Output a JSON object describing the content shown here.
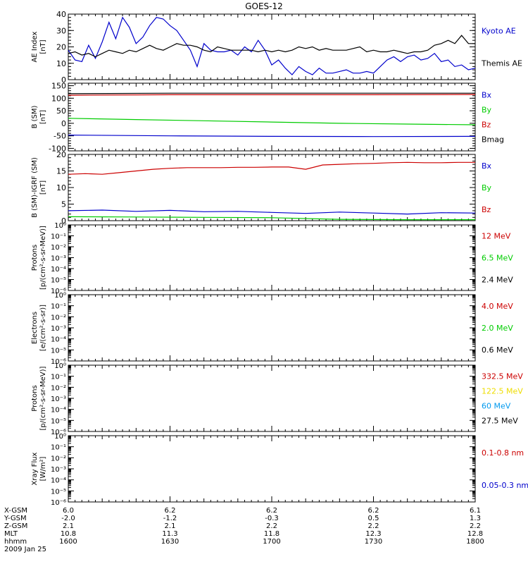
{
  "title": "GOES-12",
  "colors": {
    "blue": "#0000cc",
    "black": "#000000",
    "red": "#cc0000",
    "green": "#00cc00",
    "yellow": "#eedd00",
    "cyan": "#0099ee"
  },
  "chart_data": [
    {
      "id": "ae",
      "type": "line",
      "ylabel": [
        "AE Index",
        "[nT]"
      ],
      "ylim": [
        0,
        40
      ],
      "yticks": [
        0,
        10,
        20,
        30,
        40
      ],
      "legend": [
        {
          "name": "Kyoto AE",
          "color": "blue"
        },
        {
          "name": "Themis AE",
          "color": "black"
        }
      ],
      "series": [
        {
          "name": "Kyoto AE",
          "color": "blue",
          "x": [
            0,
            2,
            4,
            6,
            8,
            10,
            12,
            14,
            16,
            18,
            20,
            22,
            24,
            26,
            28,
            30,
            32,
            34,
            36,
            38,
            40,
            42,
            44,
            46,
            48,
            50,
            52,
            54,
            56,
            58,
            60,
            62,
            64,
            66,
            68,
            70,
            72,
            74,
            76,
            78,
            80,
            82,
            84,
            86,
            88,
            90,
            92,
            94,
            96,
            98,
            100,
            102,
            104,
            106,
            108,
            110,
            112,
            114,
            116,
            118,
            120
          ],
          "y": [
            18,
            12,
            11,
            21,
            13,
            23,
            35,
            25,
            38,
            32,
            22,
            26,
            33,
            38,
            37,
            33,
            30,
            24,
            18,
            8,
            22,
            18,
            17,
            17,
            18,
            15,
            20,
            17,
            24,
            18,
            9,
            12,
            7,
            3,
            8,
            5,
            3,
            7,
            4,
            4,
            5,
            6,
            4,
            4,
            5,
            4,
            8,
            12,
            14,
            11,
            14,
            15,
            12,
            13,
            16,
            11,
            12,
            8,
            9,
            6,
            7
          ]
        },
        {
          "name": "Themis AE",
          "color": "black",
          "x": [
            0,
            2,
            4,
            6,
            8,
            10,
            12,
            14,
            16,
            18,
            20,
            22,
            24,
            26,
            28,
            30,
            32,
            34,
            36,
            38,
            40,
            42,
            44,
            46,
            48,
            50,
            52,
            54,
            56,
            58,
            60,
            62,
            64,
            66,
            68,
            70,
            72,
            74,
            76,
            78,
            80,
            82,
            84,
            86,
            88,
            90,
            92,
            94,
            96,
            98,
            100,
            102,
            104,
            106,
            108,
            110,
            112,
            114,
            116,
            118,
            120
          ],
          "y": [
            16,
            17,
            15,
            16,
            14,
            16,
            18,
            17,
            16,
            18,
            17,
            19,
            21,
            19,
            18,
            20,
            22,
            21,
            21,
            20,
            18,
            17,
            20,
            19,
            18,
            18,
            18,
            18,
            17,
            18,
            17,
            18,
            17,
            18,
            20,
            19,
            20,
            18,
            19,
            18,
            18,
            18,
            19,
            20,
            17,
            18,
            17,
            17,
            18,
            17,
            16,
            17,
            17,
            18,
            21,
            22,
            24,
            22,
            27,
            22,
            22
          ]
        }
      ]
    },
    {
      "id": "bsm",
      "type": "line",
      "ylabel": [
        "B (SM)",
        "[nT]"
      ],
      "ylim": [
        -110,
        160
      ],
      "yticks": [
        -100,
        -50,
        0,
        50,
        100,
        150
      ],
      "legend": [
        {
          "name": "Bx",
          "color": "blue"
        },
        {
          "name": "By",
          "color": "green"
        },
        {
          "name": "Bz",
          "color": "red"
        },
        {
          "name": "Bmag",
          "color": "black"
        }
      ],
      "series": [
        {
          "name": "Bz",
          "color": "red",
          "x": [
            0,
            30,
            60,
            90,
            120
          ],
          "y": [
            112,
            114,
            114,
            114,
            115
          ]
        },
        {
          "name": "Bmag",
          "color": "black",
          "x": [
            0,
            30,
            60,
            90,
            120
          ],
          "y": [
            118,
            120,
            120,
            120,
            120
          ]
        },
        {
          "name": "By",
          "color": "green",
          "x": [
            0,
            20,
            40,
            60,
            80,
            100,
            120
          ],
          "y": [
            20,
            15,
            10,
            5,
            0,
            -3,
            -6
          ]
        },
        {
          "name": "Bx",
          "color": "blue",
          "x": [
            0,
            30,
            60,
            90,
            120
          ],
          "y": [
            -47,
            -50,
            -52,
            -53,
            -52
          ]
        }
      ]
    },
    {
      "id": "bigrf",
      "type": "line",
      "ylabel": [
        "B (SM)-IGRF (SM)",
        "[nT]"
      ],
      "ylim": [
        0,
        20
      ],
      "yticks": [
        0,
        5,
        10,
        15,
        20
      ],
      "legend": [
        {
          "name": "Bx",
          "color": "blue"
        },
        {
          "name": "By",
          "color": "green"
        },
        {
          "name": "Bz",
          "color": "red"
        }
      ],
      "series": [
        {
          "name": "Bz",
          "color": "red",
          "x": [
            0,
            5,
            10,
            15,
            20,
            25,
            30,
            35,
            40,
            45,
            50,
            55,
            60,
            65,
            70,
            75,
            80,
            85,
            90,
            95,
            100,
            105,
            110,
            115,
            120
          ],
          "y": [
            14,
            14.2,
            14,
            14.5,
            15,
            15.5,
            15.8,
            16,
            16,
            16,
            16.1,
            16.1,
            16.2,
            16.2,
            15.5,
            16.8,
            17,
            17.2,
            17.3,
            17.5,
            17.6,
            17.5,
            17.5,
            17.6,
            17.6
          ]
        },
        {
          "name": "Bx",
          "color": "blue",
          "x": [
            0,
            10,
            20,
            30,
            40,
            50,
            60,
            70,
            80,
            90,
            100,
            110,
            120
          ],
          "y": [
            3,
            3.2,
            2.8,
            3.1,
            2.7,
            2.8,
            2.5,
            2.2,
            2.6,
            2.3,
            2.0,
            2.4,
            2.3
          ]
        },
        {
          "name": "By",
          "color": "green",
          "x": [
            0,
            20,
            40,
            60,
            80,
            100,
            120
          ],
          "y": [
            1.2,
            1.1,
            1.0,
            0.9,
            0.4,
            0.3,
            0.3
          ]
        }
      ]
    },
    {
      "id": "protons1",
      "type": "line",
      "yscale": "log",
      "ylabel": [
        "Protons",
        "[p/(cm²-s-sr-MeV)]"
      ],
      "ylim": [
        1e-06,
        1
      ],
      "ytick_labels": [
        "10⁰",
        "10⁻¹",
        "10⁻²",
        "10⁻³",
        "10⁻⁴",
        "10⁻⁵",
        "10⁻⁶"
      ],
      "legend": [
        {
          "name": "12 MeV",
          "color": "red"
        },
        {
          "name": "6.5 MeV",
          "color": "green"
        },
        {
          "name": "2.4 MeV",
          "color": "black"
        }
      ],
      "series": []
    },
    {
      "id": "electrons",
      "type": "line",
      "yscale": "log",
      "ylabel": [
        "Electrons",
        "[e/(cm²-s-sr)]"
      ],
      "ylim": [
        1e-06,
        1
      ],
      "ytick_labels": [
        "10⁰",
        "10⁻¹",
        "10⁻²",
        "10⁻³",
        "10⁻⁴",
        "10⁻⁵",
        "10⁻⁶"
      ],
      "legend": [
        {
          "name": "4.0 MeV",
          "color": "red"
        },
        {
          "name": "2.0 MeV",
          "color": "green"
        },
        {
          "name": "0.6 MeV",
          "color": "black"
        }
      ],
      "series": []
    },
    {
      "id": "protons2",
      "type": "line",
      "yscale": "log",
      "ylabel": [
        "Protons",
        "[p/(cm²-s-sr-MeV)]"
      ],
      "ylim": [
        1e-06,
        1
      ],
      "ytick_labels": [
        "10⁰",
        "10⁻¹",
        "10⁻²",
        "10⁻³",
        "10⁻⁴",
        "10⁻⁵",
        "10⁻⁶"
      ],
      "legend": [
        {
          "name": "332.5 MeV",
          "color": "red"
        },
        {
          "name": "122.5 MeV",
          "color": "yellow"
        },
        {
          "name": "60 MeV",
          "color": "cyan"
        },
        {
          "name": "27.5 MeV",
          "color": "black"
        }
      ],
      "series": []
    },
    {
      "id": "xray",
      "type": "line",
      "yscale": "log",
      "ylabel": [
        "Xray  Flux",
        "[W/m²]"
      ],
      "ylim": [
        1e-06,
        1
      ],
      "ytick_labels": [
        "10⁰",
        "10⁻¹",
        "10⁻²",
        "10⁻³",
        "10⁻⁴",
        "10⁻⁵",
        "10⁻⁶"
      ],
      "legend": [
        {
          "name": "0.1-0.8 nm",
          "color": "red"
        },
        {
          "name": "0.05-0.3 nm",
          "color": "blue"
        }
      ],
      "series": []
    }
  ],
  "x_axis": {
    "range": [
      0,
      120
    ],
    "rows": [
      {
        "label": "X-GSM",
        "values": [
          "6.0",
          "6.2",
          "6.2",
          "6.2",
          "6.1"
        ]
      },
      {
        "label": "Y-GSM",
        "values": [
          "-2.0",
          "-1.2",
          "-0.3",
          "0.5",
          "1.3"
        ]
      },
      {
        "label": "Z-GSM",
        "values": [
          "2.1",
          "2.1",
          "2.2",
          "2.2",
          "2.2"
        ]
      },
      {
        "label": "MLT",
        "values": [
          "10.8",
          "11.3",
          "11.8",
          "12.3",
          "12.8"
        ]
      },
      {
        "label": "hhmm",
        "values": [
          "1600",
          "1630",
          "1700",
          "1730",
          "1800"
        ]
      }
    ],
    "date": "2009 Jan 25"
  }
}
